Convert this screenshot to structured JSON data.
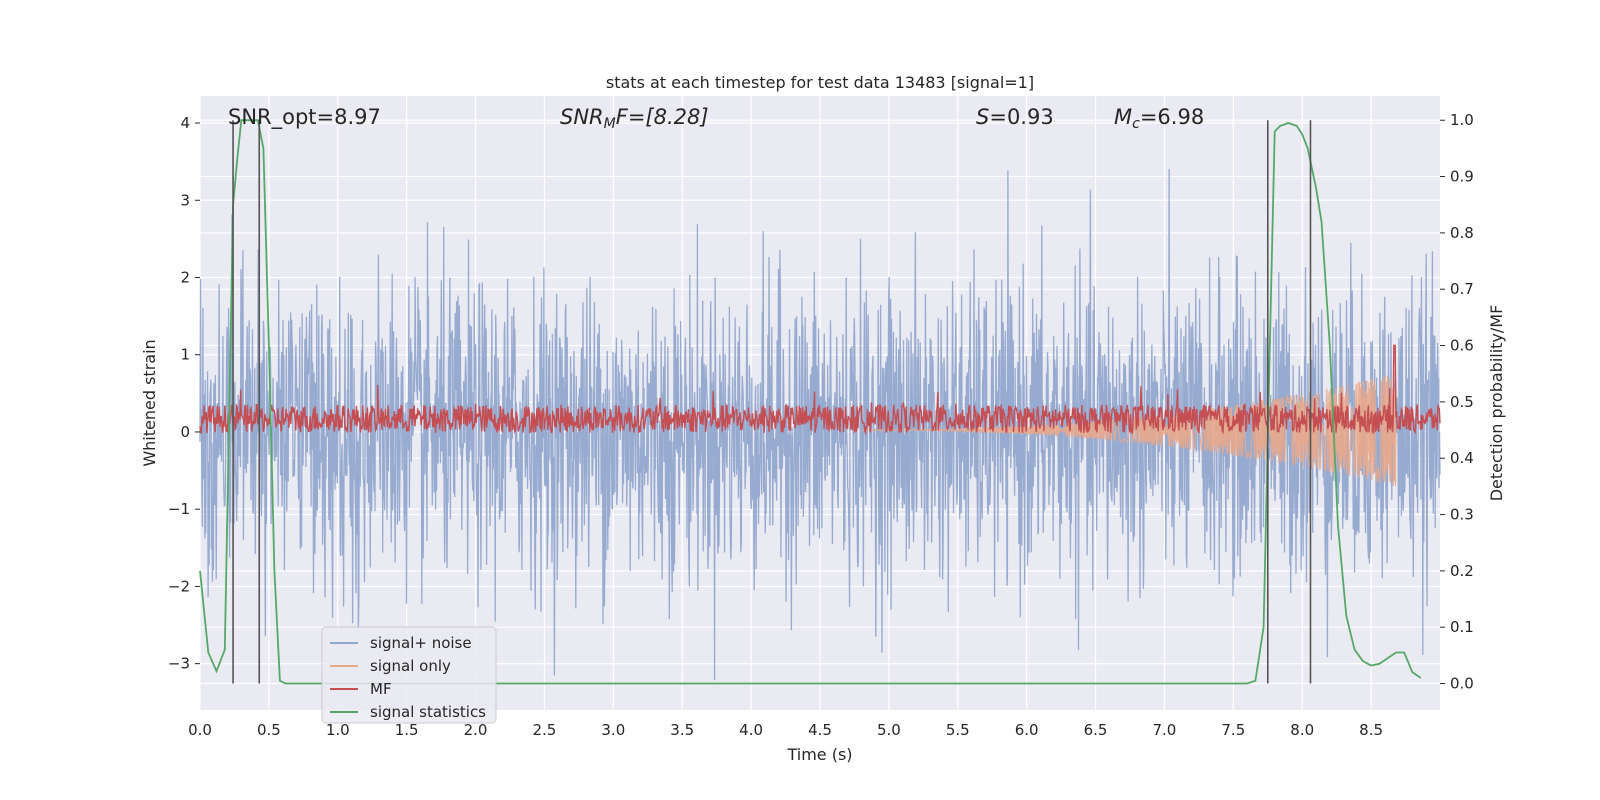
{
  "chart_data": {
    "type": "line",
    "title": "stats at each timestep for test data 13483 [signal=1]",
    "xlabel": "Time (s)",
    "ylabel": "Whitened strain",
    "ylabel_right": "Detection probability/MF",
    "xlim": [
      0.0,
      9.0
    ],
    "ylim": [
      -3.6,
      4.35
    ],
    "ylim_right": [
      -0.047,
      1.043
    ],
    "xticks": [
      "0.0",
      "0.5",
      "1.0",
      "1.5",
      "2.0",
      "2.5",
      "3.0",
      "3.5",
      "4.0",
      "4.5",
      "5.0",
      "5.5",
      "6.0",
      "6.5",
      "7.0",
      "7.5",
      "8.0",
      "8.5"
    ],
    "yticks": [
      "4",
      "3",
      "2",
      "1",
      "0",
      "−1",
      "−2",
      "−3"
    ],
    "yticks_right": [
      "1.0",
      "0.9",
      "0.8",
      "0.7",
      "0.6",
      "0.5",
      "0.4",
      "0.3",
      "0.2",
      "0.1",
      "0.0"
    ],
    "grid": true,
    "annotations": {
      "snr_opt": "SNR_opt=8.97",
      "snr_mf_prefix": "SNR",
      "snr_mf_sub": "M",
      "snr_mf_suffix": "F=[8.28]",
      "s_var": "S",
      "s_value": "=0.93",
      "mc_var": "M",
      "mc_sub": "c",
      "mc_value": "=6.98"
    },
    "vlines": [
      0.24,
      0.43,
      7.75,
      8.06
    ],
    "legend": {
      "position": "lower-left",
      "entries": [
        {
          "label": "signal+ noise",
          "color": "#92a6ce"
        },
        {
          "label": "signal only",
          "color": "#e9a98b"
        },
        {
          "label": "MF",
          "color": "#c44e52"
        },
        {
          "label": "signal statistics",
          "color": "#55a868"
        }
      ]
    },
    "series": [
      {
        "name": "signal+ noise",
        "axis": "left",
        "kind": "noise",
        "sigma": 0.95,
        "color": "#92a6ce"
      },
      {
        "name": "signal only",
        "axis": "right",
        "kind": "chirp",
        "center": 0.45,
        "start_x": 4.8,
        "end_x": 8.68,
        "peak_amplitude": 0.1,
        "color": "#e9a98b"
      },
      {
        "name": "MF",
        "axis": "right",
        "kind": "noise",
        "center": 0.47,
        "half_width": 0.025,
        "spike": {
          "x": 8.67,
          "value": 0.6
        },
        "color": "#c44e52"
      },
      {
        "name": "signal statistics",
        "axis": "right",
        "kind": "line",
        "color": "#55a868",
        "x": [
          0.0,
          0.06,
          0.12,
          0.18,
          0.24,
          0.27,
          0.3,
          0.34,
          0.38,
          0.42,
          0.46,
          0.5,
          0.54,
          0.58,
          0.62,
          0.7,
          1.0,
          2.0,
          3.0,
          4.0,
          5.0,
          6.0,
          7.0,
          7.6,
          7.66,
          7.72,
          7.76,
          7.8,
          7.84,
          7.9,
          7.96,
          8.0,
          8.04,
          8.1,
          8.14,
          8.2,
          8.26,
          8.32,
          8.38,
          8.44,
          8.5,
          8.56,
          8.62,
          8.68,
          8.74,
          8.8,
          8.86
        ],
        "y": [
          0.2,
          0.055,
          0.022,
          0.06,
          0.85,
          0.93,
          1.0,
          1.0,
          1.0,
          1.0,
          0.95,
          0.6,
          0.2,
          0.005,
          0.0,
          0.0,
          0.0,
          0.0,
          0.0,
          0.0,
          0.0,
          0.0,
          0.0,
          0.0,
          0.005,
          0.1,
          0.55,
          0.98,
          0.99,
          0.995,
          0.99,
          0.975,
          0.95,
          0.88,
          0.82,
          0.6,
          0.28,
          0.12,
          0.06,
          0.04,
          0.032,
          0.035,
          0.045,
          0.055,
          0.055,
          0.02,
          0.01
        ]
      }
    ]
  }
}
